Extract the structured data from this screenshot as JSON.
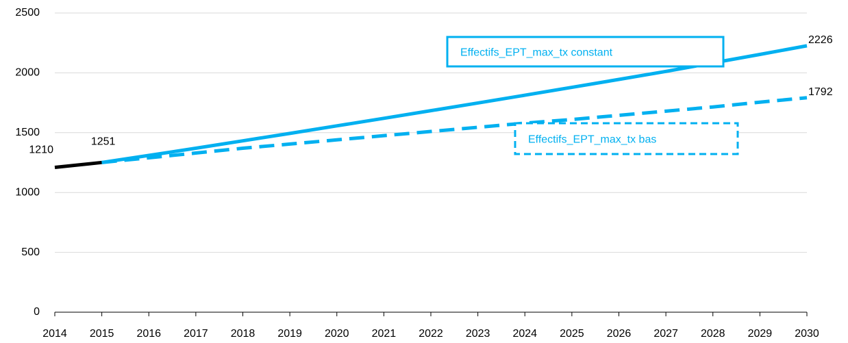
{
  "chart_data": {
    "type": "line",
    "x": [
      2014,
      2015,
      2016,
      2017,
      2018,
      2019,
      2020,
      2021,
      2022,
      2023,
      2024,
      2025,
      2026,
      2027,
      2028,
      2029,
      2030
    ],
    "series": [
      {
        "color": "#000000",
        "dash": false,
        "data_labels": "all",
        "values": [
          1210,
          1251,
          null,
          null,
          null,
          null,
          null,
          null,
          null,
          null,
          null,
          null,
          null,
          null,
          null,
          null,
          null
        ]
      },
      {
        "name": "Effectifs_EPT_max_tx constant",
        "color": "#00b0f0",
        "dash": false,
        "data_labels": "last",
        "values": [
          null,
          1251,
          1310,
          1370,
          1432,
          1494,
          1557,
          1620,
          1684,
          1748,
          1813,
          1879,
          1945,
          2012,
          2083,
          2154,
          2226
        ]
      },
      {
        "name": "Effectifs_EPT_max_tx bas",
        "color": "#00b0f0",
        "dash": true,
        "data_labels": "last",
        "values": [
          null,
          1251,
          1290,
          1330,
          1370,
          1405,
          1440,
          1475,
          1510,
          1545,
          1580,
          1610,
          1645,
          1680,
          1715,
          1755,
          1792
        ]
      }
    ],
    "xlim": [
      2014,
      2030
    ],
    "xticks": [
      2014,
      2015,
      2016,
      2017,
      2018,
      2019,
      2020,
      2021,
      2022,
      2023,
      2024,
      2025,
      2026,
      2027,
      2028,
      2029,
      2030
    ],
    "ylim": [
      0,
      2500
    ],
    "yticks": [
      0,
      500,
      1000,
      1500,
      2000,
      2500
    ],
    "grid": true
  }
}
